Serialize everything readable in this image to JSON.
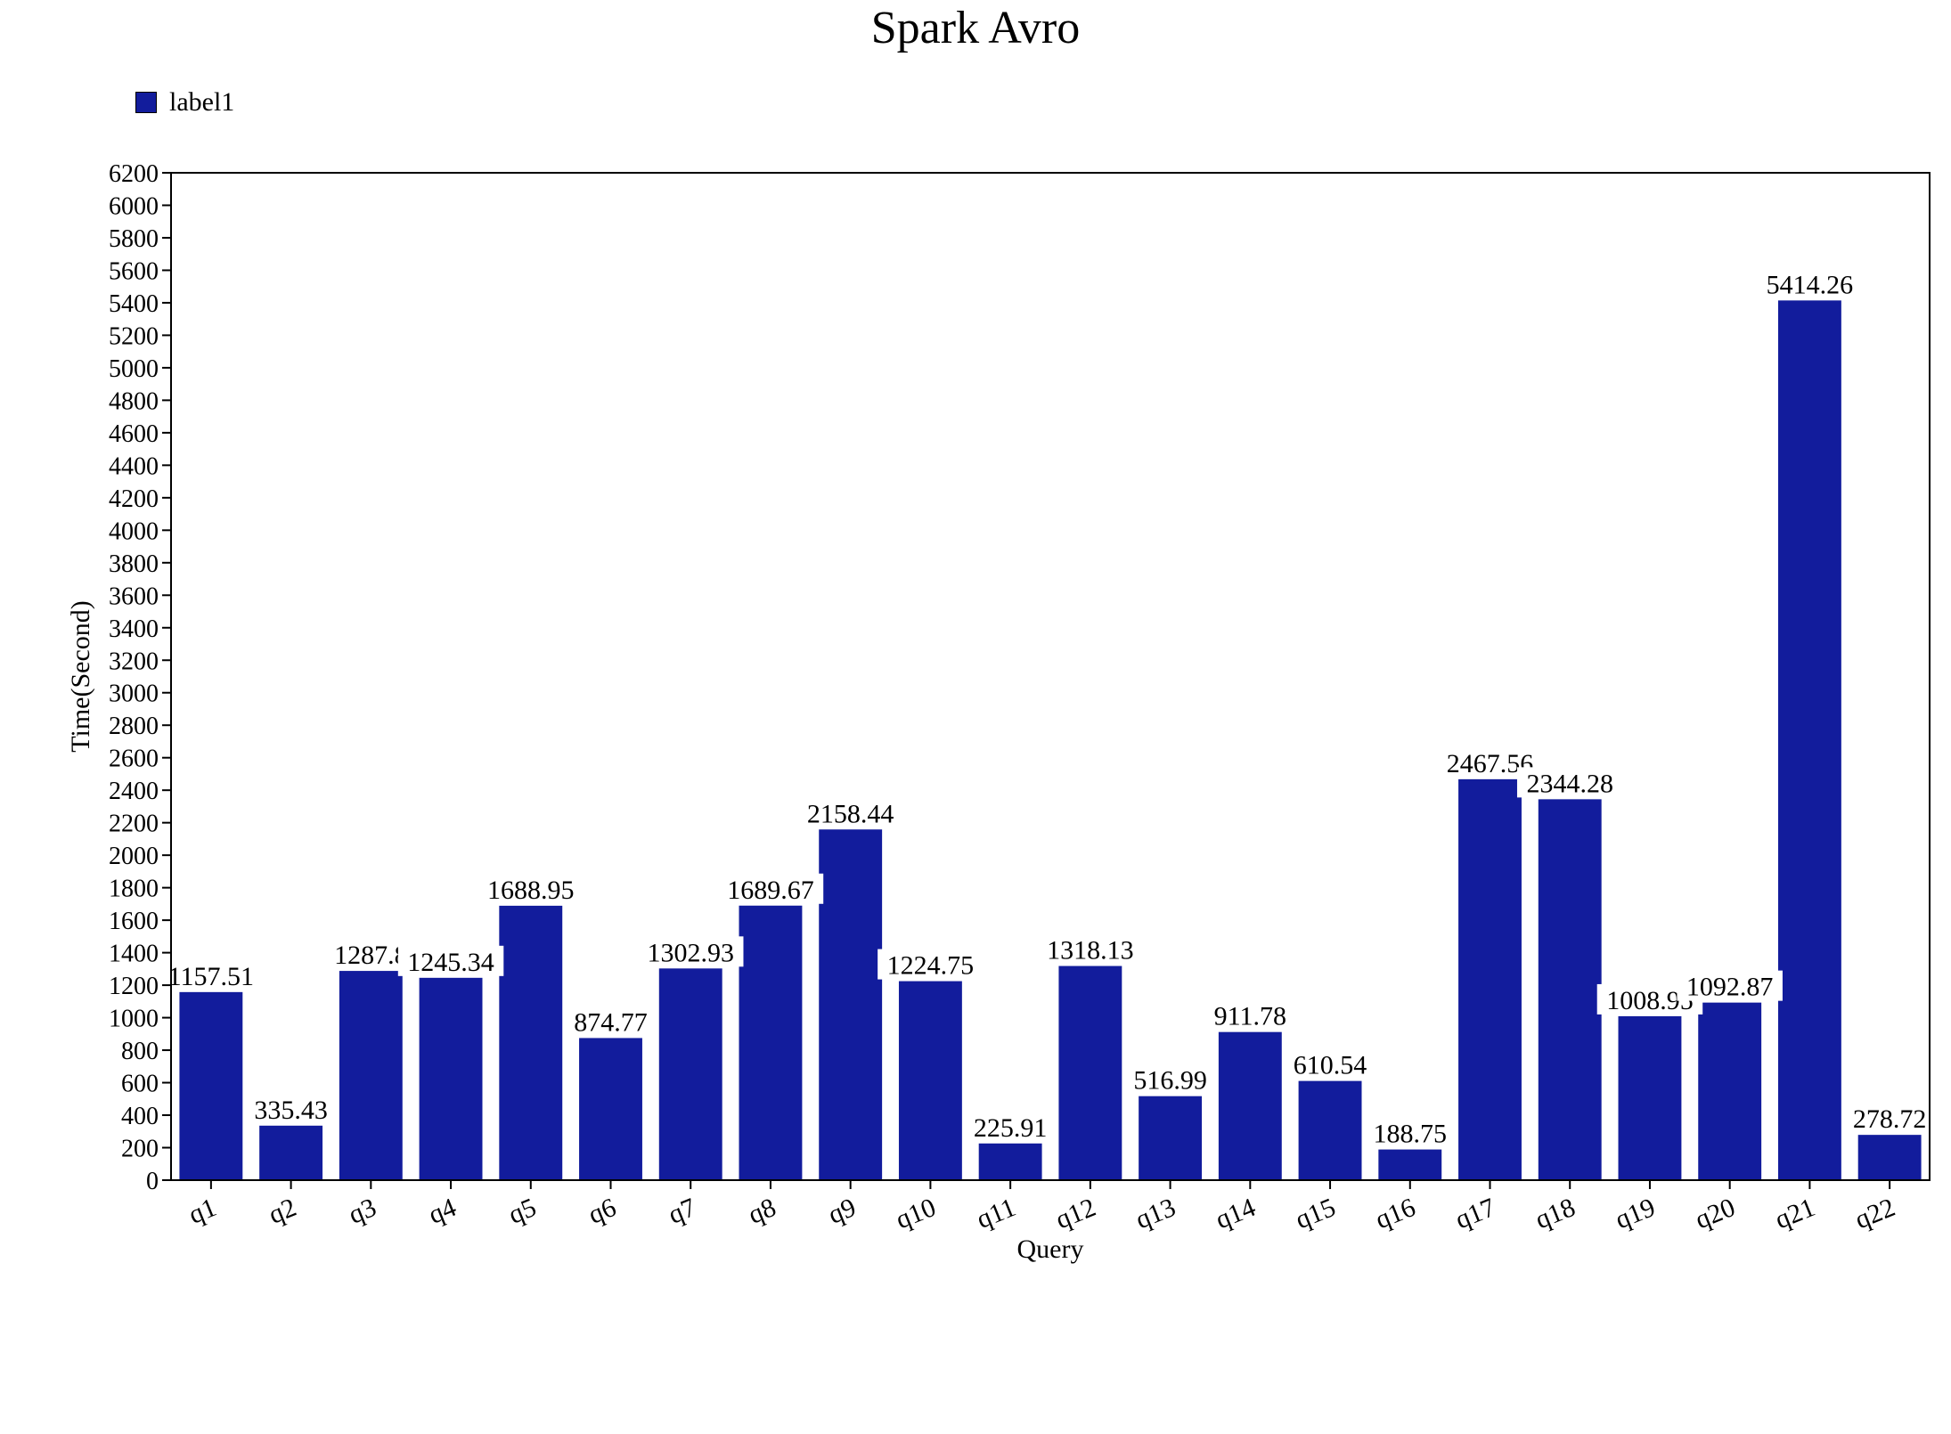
{
  "chart_data": {
    "type": "bar",
    "title": "Spark Avro",
    "xlabel": "Query",
    "ylabel": "Time(Second)",
    "ylim": [
      0,
      6200
    ],
    "yticks": [
      0,
      200,
      400,
      600,
      800,
      1000,
      1200,
      1400,
      1600,
      1800,
      2000,
      2200,
      2400,
      2600,
      2800,
      3000,
      3200,
      3400,
      3600,
      3800,
      4000,
      4200,
      4400,
      4600,
      4800,
      5000,
      5200,
      5400,
      5600,
      5800,
      6000,
      6200
    ],
    "categories": [
      "q1",
      "q2",
      "q3",
      "q4",
      "q5",
      "q6",
      "q7",
      "q8",
      "q9",
      "q10",
      "q11",
      "q12",
      "q13",
      "q14",
      "q15",
      "q16",
      "q17",
      "q18",
      "q19",
      "q20",
      "q21",
      "q22"
    ],
    "series": [
      {
        "name": "label1",
        "color": "#121c9c",
        "values": [
          1157.51,
          335.43,
          1287.8,
          1245.34,
          1688.95,
          874.77,
          1302.93,
          1689.67,
          2158.44,
          1224.75,
          225.91,
          1318.13,
          516.99,
          911.78,
          610.54,
          188.75,
          2467.56,
          2344.28,
          1008.95,
          1092.87,
          5414.26,
          278.72
        ],
        "data_labels": [
          "1157.51",
          "335.43",
          "1287.8",
          "1245.34",
          "1688.95",
          "874.77",
          "1302.93",
          "1689.67",
          "2158.44",
          "1224.75",
          "225.91",
          "1318.13",
          "516.99",
          "911.78",
          "610.54",
          "188.75",
          "2467.56",
          "2344.28",
          "1008.95",
          "1092.87",
          "5414.26",
          "278.72"
        ]
      }
    ],
    "legend": {
      "position": "top-left",
      "entries": [
        "label1"
      ]
    },
    "grid": false
  }
}
